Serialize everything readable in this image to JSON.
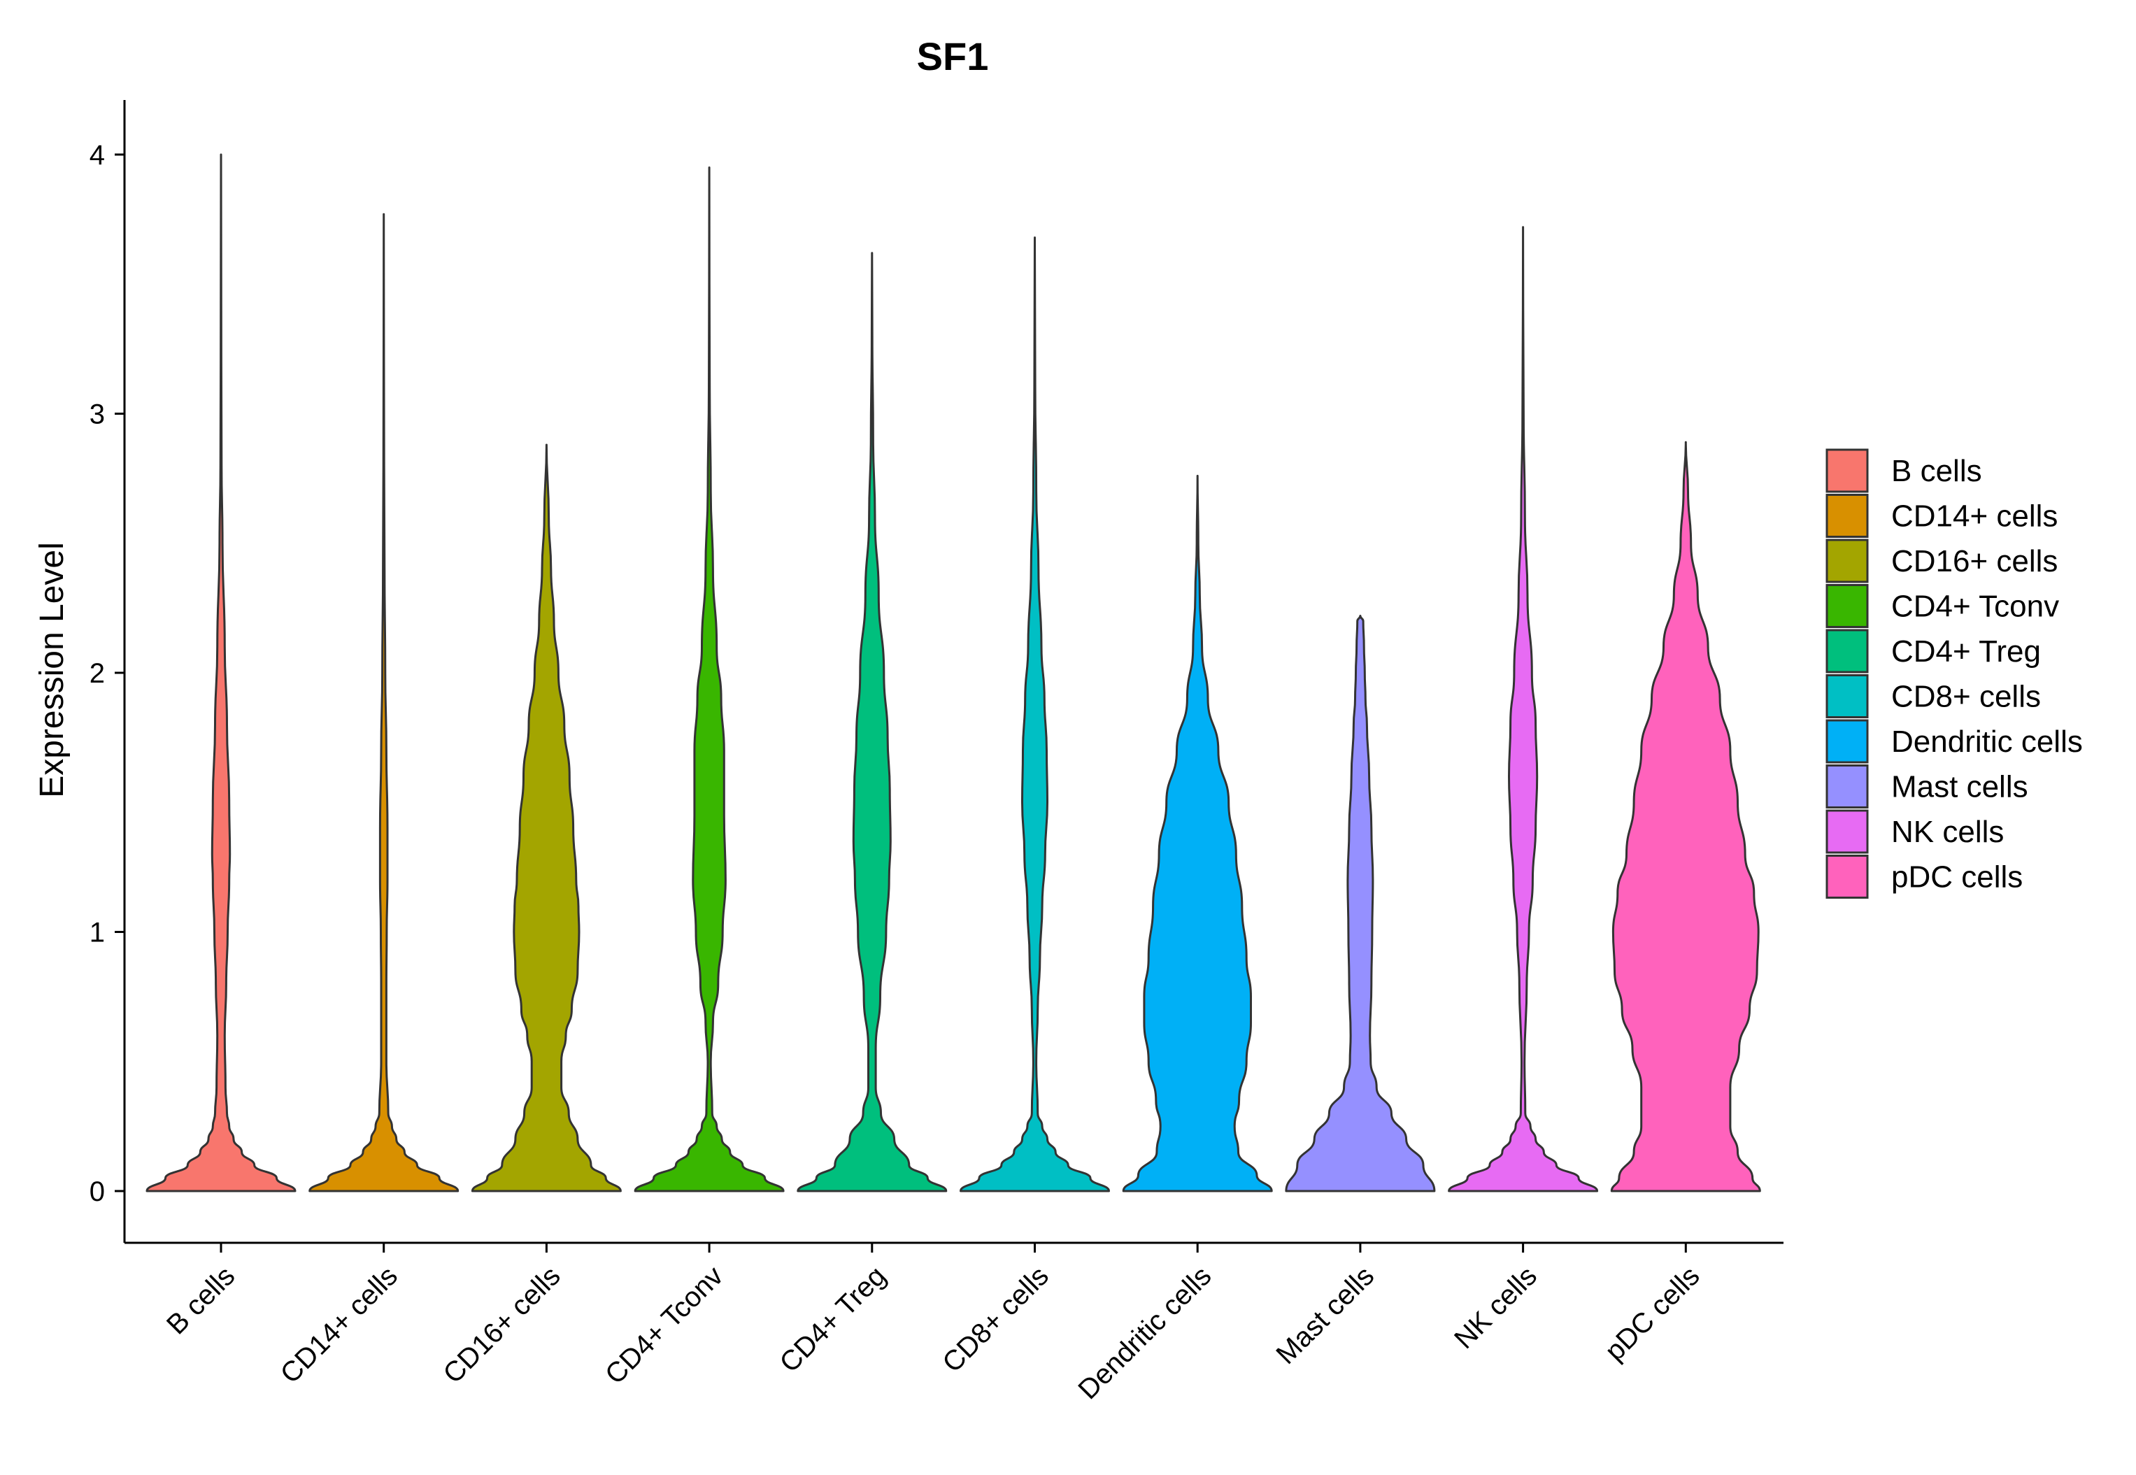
{
  "chart_data": {
    "type": "violin",
    "title": "SF1",
    "xlabel": "",
    "ylabel": "Expression Level",
    "ylim": [
      -0.2,
      4.2
    ],
    "yticks": [
      0,
      1,
      2,
      3,
      4
    ],
    "categories": [
      "B cells",
      "CD14+ cells",
      "CD16+ cells",
      "CD4+ Tconv",
      "CD4+ Treg",
      "CD8+ cells",
      "Dendritic cells",
      "Mast cells",
      "NK cells",
      "pDC cells"
    ],
    "colors": [
      "#F8766D",
      "#D89000",
      "#A3A500",
      "#39B600",
      "#00BF7D",
      "#00BFC4",
      "#00B0F6",
      "#9590FF",
      "#E76BF3",
      "#FF62BC"
    ],
    "legend": {
      "position": "right",
      "entries": [
        "B cells",
        "CD14+ cells",
        "CD16+ cells",
        "CD4+ Tconv",
        "CD4+ Treg",
        "CD8+ cells",
        "Dendritic cells",
        "Mast cells",
        "NK cells",
        "pDC cells"
      ]
    },
    "violins": [
      {
        "name": "B cells",
        "max": 4.0,
        "profile": [
          [
            0,
            1
          ],
          [
            0.05,
            0.75
          ],
          [
            0.1,
            0.45
          ],
          [
            0.15,
            0.28
          ],
          [
            0.2,
            0.17
          ],
          [
            0.25,
            0.11
          ],
          [
            0.3,
            0.08
          ],
          [
            0.4,
            0.06
          ],
          [
            0.6,
            0.05
          ],
          [
            0.8,
            0.07
          ],
          [
            1.0,
            0.09
          ],
          [
            1.2,
            0.11
          ],
          [
            1.3,
            0.12
          ],
          [
            1.5,
            0.11
          ],
          [
            1.8,
            0.08
          ],
          [
            2.1,
            0.05
          ],
          [
            2.5,
            0.02
          ],
          [
            2.8,
            0.008
          ],
          [
            3.2,
            0.004
          ],
          [
            3.6,
            0.002
          ],
          [
            4.0,
            0
          ]
        ]
      },
      {
        "name": "CD14+ cells",
        "max": 3.77,
        "profile": [
          [
            0,
            1
          ],
          [
            0.05,
            0.75
          ],
          [
            0.1,
            0.45
          ],
          [
            0.15,
            0.28
          ],
          [
            0.2,
            0.17
          ],
          [
            0.25,
            0.11
          ],
          [
            0.3,
            0.06
          ],
          [
            0.5,
            0.035
          ],
          [
            0.8,
            0.035
          ],
          [
            1.0,
            0.04
          ],
          [
            1.2,
            0.05
          ],
          [
            1.4,
            0.05
          ],
          [
            1.7,
            0.035
          ],
          [
            2.0,
            0.02
          ],
          [
            2.4,
            0.01
          ],
          [
            2.8,
            0.005
          ],
          [
            3.3,
            0.002
          ],
          [
            3.77,
            0
          ]
        ]
      },
      {
        "name": "CD16+ cells",
        "max": 2.88,
        "profile": [
          [
            0,
            1
          ],
          [
            0.05,
            0.8
          ],
          [
            0.1,
            0.6
          ],
          [
            0.2,
            0.42
          ],
          [
            0.3,
            0.3
          ],
          [
            0.4,
            0.2
          ],
          [
            0.5,
            0.2
          ],
          [
            0.6,
            0.26
          ],
          [
            0.7,
            0.34
          ],
          [
            0.85,
            0.42
          ],
          [
            1.0,
            0.44
          ],
          [
            1.1,
            0.43
          ],
          [
            1.2,
            0.4
          ],
          [
            1.4,
            0.36
          ],
          [
            1.6,
            0.31
          ],
          [
            1.8,
            0.24
          ],
          [
            2.0,
            0.16
          ],
          [
            2.2,
            0.1
          ],
          [
            2.4,
            0.06
          ],
          [
            2.6,
            0.03
          ],
          [
            2.88,
            0
          ]
        ]
      },
      {
        "name": "CD4+ Tconv",
        "max": 3.95,
        "profile": [
          [
            0,
            1
          ],
          [
            0.05,
            0.75
          ],
          [
            0.1,
            0.45
          ],
          [
            0.15,
            0.28
          ],
          [
            0.2,
            0.17
          ],
          [
            0.25,
            0.1
          ],
          [
            0.3,
            0.04
          ],
          [
            0.5,
            0.02
          ],
          [
            0.65,
            0.05
          ],
          [
            0.8,
            0.12
          ],
          [
            1.0,
            0.18
          ],
          [
            1.2,
            0.22
          ],
          [
            1.45,
            0.2
          ],
          [
            1.7,
            0.2
          ],
          [
            1.9,
            0.16
          ],
          [
            2.1,
            0.1
          ],
          [
            2.4,
            0.05
          ],
          [
            2.7,
            0.02
          ],
          [
            3.1,
            0.006
          ],
          [
            3.5,
            0.002
          ],
          [
            3.95,
            0
          ]
        ]
      },
      {
        "name": "CD4+ Treg",
        "max": 3.62,
        "profile": [
          [
            0,
            1
          ],
          [
            0.05,
            0.75
          ],
          [
            0.1,
            0.5
          ],
          [
            0.2,
            0.3
          ],
          [
            0.3,
            0.12
          ],
          [
            0.4,
            0.05
          ],
          [
            0.55,
            0.05
          ],
          [
            0.75,
            0.11
          ],
          [
            1.0,
            0.19
          ],
          [
            1.2,
            0.23
          ],
          [
            1.35,
            0.25
          ],
          [
            1.55,
            0.24
          ],
          [
            1.75,
            0.21
          ],
          [
            2.0,
            0.16
          ],
          [
            2.3,
            0.09
          ],
          [
            2.6,
            0.04
          ],
          [
            2.9,
            0.015
          ],
          [
            3.3,
            0.004
          ],
          [
            3.62,
            0
          ]
        ]
      },
      {
        "name": "CD8+ cells",
        "max": 3.68,
        "profile": [
          [
            0,
            1
          ],
          [
            0.05,
            0.75
          ],
          [
            0.1,
            0.45
          ],
          [
            0.15,
            0.28
          ],
          [
            0.2,
            0.17
          ],
          [
            0.25,
            0.1
          ],
          [
            0.3,
            0.04
          ],
          [
            0.5,
            0.02
          ],
          [
            0.7,
            0.04
          ],
          [
            0.9,
            0.07
          ],
          [
            1.1,
            0.1
          ],
          [
            1.3,
            0.14
          ],
          [
            1.5,
            0.17
          ],
          [
            1.7,
            0.16
          ],
          [
            1.9,
            0.13
          ],
          [
            2.1,
            0.09
          ],
          [
            2.4,
            0.05
          ],
          [
            2.7,
            0.02
          ],
          [
            3.1,
            0.006
          ],
          [
            3.68,
            0
          ]
        ]
      },
      {
        "name": "Dendritic cells",
        "max": 2.76,
        "profile": [
          [
            0,
            1
          ],
          [
            0.06,
            0.8
          ],
          [
            0.15,
            0.55
          ],
          [
            0.25,
            0.5
          ],
          [
            0.35,
            0.56
          ],
          [
            0.5,
            0.66
          ],
          [
            0.65,
            0.72
          ],
          [
            0.75,
            0.72
          ],
          [
            0.9,
            0.66
          ],
          [
            1.1,
            0.6
          ],
          [
            1.3,
            0.52
          ],
          [
            1.5,
            0.42
          ],
          [
            1.7,
            0.28
          ],
          [
            1.9,
            0.14
          ],
          [
            2.1,
            0.06
          ],
          [
            2.3,
            0.03
          ],
          [
            2.5,
            0.01
          ],
          [
            2.76,
            0
          ]
        ]
      },
      {
        "name": "Mast cells",
        "max": 2.22,
        "profile": [
          [
            0,
            1
          ],
          [
            0.1,
            0.85
          ],
          [
            0.2,
            0.62
          ],
          [
            0.3,
            0.42
          ],
          [
            0.4,
            0.22
          ],
          [
            0.5,
            0.14
          ],
          [
            0.6,
            0.13
          ],
          [
            0.8,
            0.15
          ],
          [
            1.0,
            0.16
          ],
          [
            1.2,
            0.17
          ],
          [
            1.4,
            0.15
          ],
          [
            1.6,
            0.12
          ],
          [
            1.8,
            0.09
          ],
          [
            1.9,
            0.07
          ],
          [
            2.0,
            0.06
          ],
          [
            2.1,
            0.05
          ],
          [
            2.2,
            0.04
          ],
          [
            2.22,
            0
          ]
        ]
      },
      {
        "name": "NK cells",
        "max": 3.72,
        "profile": [
          [
            0,
            1
          ],
          [
            0.05,
            0.75
          ],
          [
            0.1,
            0.45
          ],
          [
            0.15,
            0.28
          ],
          [
            0.2,
            0.17
          ],
          [
            0.25,
            0.1
          ],
          [
            0.3,
            0.03
          ],
          [
            0.5,
            0.02
          ],
          [
            0.8,
            0.05
          ],
          [
            1.0,
            0.08
          ],
          [
            1.2,
            0.13
          ],
          [
            1.4,
            0.17
          ],
          [
            1.6,
            0.19
          ],
          [
            1.8,
            0.17
          ],
          [
            2.0,
            0.12
          ],
          [
            2.3,
            0.06
          ],
          [
            2.6,
            0.025
          ],
          [
            3.0,
            0.008
          ],
          [
            3.4,
            0.002
          ],
          [
            3.72,
            0
          ]
        ]
      },
      {
        "name": "pDC cells",
        "max": 2.89,
        "profile": [
          [
            0,
            1
          ],
          [
            0.05,
            0.9
          ],
          [
            0.15,
            0.7
          ],
          [
            0.25,
            0.6
          ],
          [
            0.4,
            0.6
          ],
          [
            0.55,
            0.72
          ],
          [
            0.7,
            0.86
          ],
          [
            0.85,
            0.96
          ],
          [
            1.0,
            0.98
          ],
          [
            1.15,
            0.92
          ],
          [
            1.3,
            0.8
          ],
          [
            1.5,
            0.7
          ],
          [
            1.7,
            0.6
          ],
          [
            1.9,
            0.46
          ],
          [
            2.1,
            0.3
          ],
          [
            2.3,
            0.16
          ],
          [
            2.5,
            0.07
          ],
          [
            2.7,
            0.03
          ],
          [
            2.89,
            0
          ]
        ]
      }
    ]
  }
}
